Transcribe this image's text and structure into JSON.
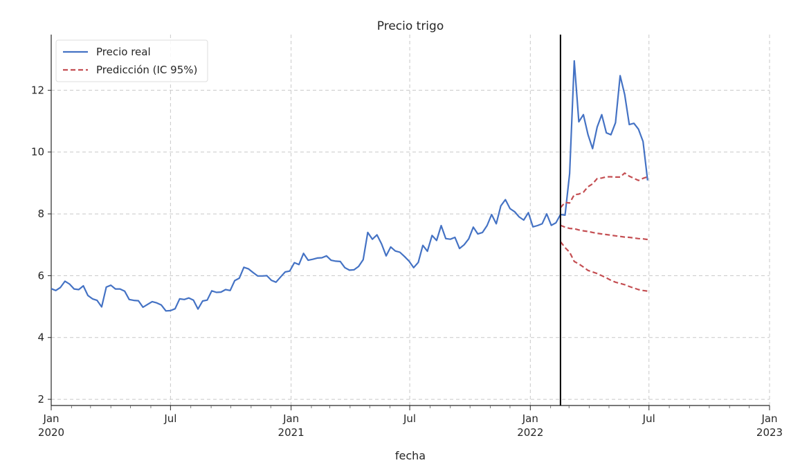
{
  "chart_data": {
    "type": "line",
    "title": "Precio trigo",
    "xlabel": "fecha",
    "ylabel": "",
    "ylim": [
      1.8,
      13.8
    ],
    "xlim": [
      "2020-01-01",
      "2023-01-01"
    ],
    "yticks": [
      2,
      4,
      6,
      8,
      10,
      12
    ],
    "xticks": [
      {
        "date": "2020-01-01",
        "label": "Jan",
        "sub": "2020"
      },
      {
        "date": "2020-07-01",
        "label": "Jul",
        "sub": ""
      },
      {
        "date": "2021-01-01",
        "label": "Jan",
        "sub": "2021"
      },
      {
        "date": "2021-07-01",
        "label": "Jul",
        "sub": ""
      },
      {
        "date": "2022-01-01",
        "label": "Jan",
        "sub": "2022"
      },
      {
        "date": "2022-07-01",
        "label": "Jul",
        "sub": ""
      },
      {
        "date": "2023-01-01",
        "label": "Jan",
        "sub": "2023"
      }
    ],
    "grid": true,
    "legend_position": "top-left",
    "vline_date": "2022-02-16",
    "colors": {
      "real": "#4472c4",
      "pred": "#c44e52",
      "vline": "#000000"
    },
    "series": [
      {
        "name": "Precio real",
        "style": "solid",
        "start_date": "2020-01-01",
        "step_days": 7,
        "values": [
          5.58,
          5.52,
          5.62,
          5.82,
          5.73,
          5.57,
          5.55,
          5.67,
          5.36,
          5.25,
          5.2,
          4.99,
          5.63,
          5.69,
          5.57,
          5.57,
          5.5,
          5.23,
          5.2,
          5.19,
          4.98,
          5.07,
          5.16,
          5.12,
          5.05,
          4.86,
          4.87,
          4.93,
          5.25,
          5.23,
          5.28,
          5.21,
          4.92,
          5.18,
          5.21,
          5.51,
          5.46,
          5.47,
          5.55,
          5.52,
          5.84,
          5.92,
          6.27,
          6.22,
          6.1,
          5.99,
          5.99,
          6.0,
          5.85,
          5.79,
          5.96,
          6.12,
          6.15,
          6.42,
          6.36,
          6.72,
          6.5,
          6.53,
          6.57,
          6.58,
          6.64,
          6.5,
          6.47,
          6.46,
          6.26,
          6.18,
          6.19,
          6.3,
          6.52,
          7.4,
          7.18,
          7.32,
          7.03,
          6.64,
          6.93,
          6.8,
          6.76,
          6.62,
          6.47,
          6.26,
          6.43,
          6.98,
          6.79,
          7.3,
          7.14,
          7.62,
          7.2,
          7.18,
          7.24,
          6.88,
          7.0,
          7.19,
          7.57,
          7.35,
          7.4,
          7.62,
          7.98,
          7.68,
          8.26,
          8.46,
          8.17,
          8.07,
          7.9,
          7.8,
          8.04,
          7.58,
          7.62,
          7.68,
          8.0,
          7.63,
          7.71,
          7.98,
          7.96,
          9.3,
          12.95,
          10.98,
          11.21,
          10.56,
          10.11,
          10.81,
          11.21,
          10.62,
          10.56,
          10.95,
          12.47,
          11.86,
          10.89,
          10.93,
          10.74,
          10.34,
          9.08
        ]
      },
      {
        "name": "Predicción (IC 95%)",
        "style": "dashed",
        "start_date": "2022-02-16",
        "step_days": 7,
        "values": [
          8.2,
          8.37,
          8.35,
          8.62,
          8.64,
          8.7,
          8.88,
          8.97,
          9.14,
          9.16,
          9.2,
          9.2,
          9.19,
          9.19,
          9.32,
          9.22,
          9.15,
          9.08,
          9.15,
          9.2
        ]
      },
      {
        "name": "",
        "style": "dashed",
        "start_date": "2022-02-16",
        "step_days": 7,
        "values": [
          7.63,
          7.57,
          7.53,
          7.52,
          7.48,
          7.45,
          7.43,
          7.4,
          7.37,
          7.35,
          7.33,
          7.31,
          7.29,
          7.27,
          7.25,
          7.24,
          7.22,
          7.2,
          7.19,
          7.17
        ]
      },
      {
        "name": "",
        "style": "dashed",
        "start_date": "2022-02-16",
        "step_days": 7,
        "values": [
          7.1,
          6.91,
          6.76,
          6.46,
          6.38,
          6.28,
          6.17,
          6.12,
          6.07,
          6.0,
          5.93,
          5.85,
          5.79,
          5.75,
          5.71,
          5.65,
          5.6,
          5.55,
          5.52,
          5.5
        ]
      }
    ]
  }
}
